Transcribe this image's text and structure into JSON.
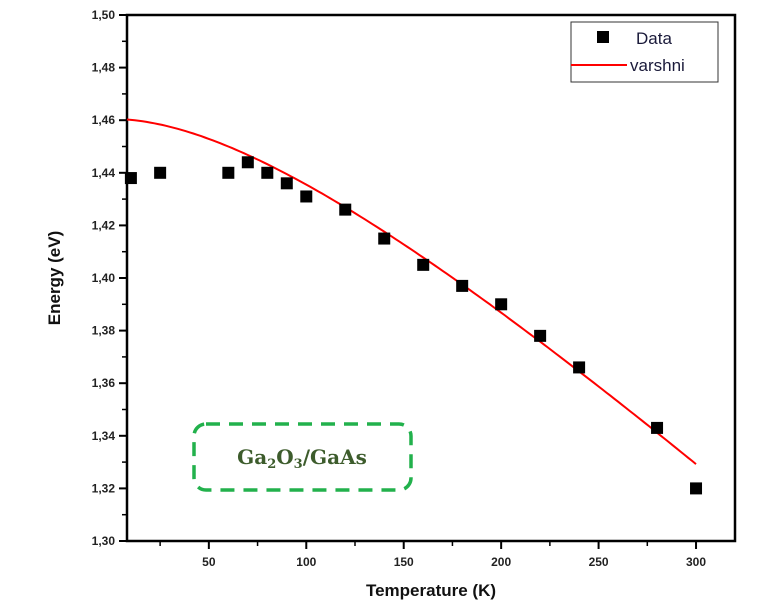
{
  "chart_data": {
    "type": "scatter",
    "title": "",
    "xlabel": "Temperature (K)",
    "ylabel": "Energy (eV)",
    "xlim": [
      8,
      320
    ],
    "ylim": [
      1.3,
      1.5
    ],
    "x_ticks": [
      50,
      100,
      150,
      200,
      250,
      300
    ],
    "x_tick_labels": [
      "50",
      "100",
      "150",
      "200",
      "250",
      "300"
    ],
    "x_minor_ticks": [
      25,
      75,
      125,
      175,
      225,
      275
    ],
    "y_ticks": [
      1.3,
      1.32,
      1.34,
      1.36,
      1.38,
      1.4,
      1.42,
      1.44,
      1.46,
      1.48,
      1.5
    ],
    "y_tick_labels": [
      "1,30",
      "1,32",
      "1,34",
      "1,36",
      "1,38",
      "1,40",
      "1,42",
      "1,44",
      "1,46",
      "1,48",
      "1,50"
    ],
    "y_minor_ticks": [
      1.31,
      1.33,
      1.35,
      1.37,
      1.39,
      1.41,
      1.43,
      1.45,
      1.47,
      1.49
    ],
    "grid": false,
    "legend_position": "top-right",
    "series": [
      {
        "name": "Data",
        "kind": "scatter",
        "marker": "square",
        "color": "#000000",
        "x": [
          10,
          25,
          60,
          70,
          80,
          90,
          100,
          120,
          140,
          160,
          180,
          200,
          220,
          240,
          280,
          300
        ],
        "y": [
          1.438,
          1.44,
          1.44,
          1.444,
          1.44,
          1.436,
          1.431,
          1.426,
          1.415,
          1.405,
          1.397,
          1.39,
          1.378,
          1.366,
          1.343,
          1.32
        ]
      },
      {
        "name": "varshni",
        "kind": "line",
        "color": "#ff0000",
        "model": "E(T) = E0 - alpha*T^2/(T+beta)",
        "params": {
          "E0": 1.4605,
          "alpha": 0.0007,
          "beta": 180
        },
        "x_range": [
          8,
          300
        ]
      }
    ],
    "annotations": [
      {
        "text_parts": [
          "Ga",
          "2",
          "O",
          "3",
          "/GaAs"
        ],
        "text": "Ga2O3/GaAs",
        "border_color": "#22b14c",
        "text_color": "#3d5c2c",
        "border_style": "dashed"
      }
    ]
  }
}
